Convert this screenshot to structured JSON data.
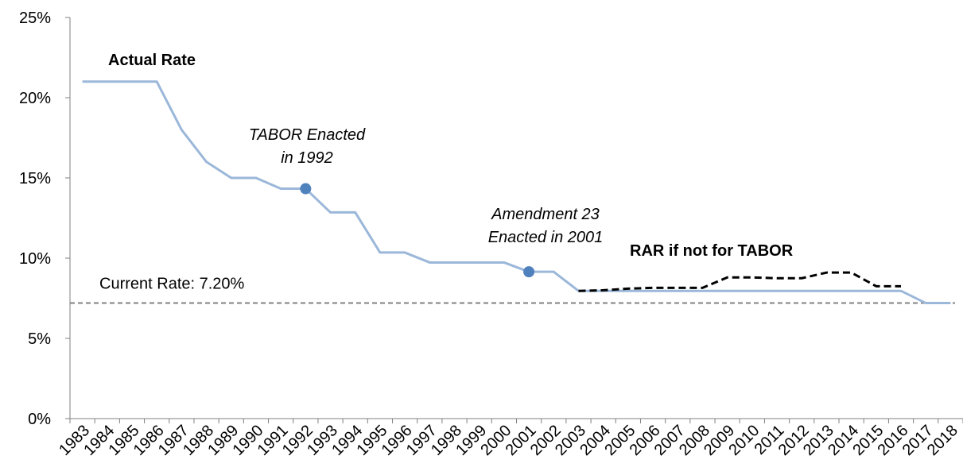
{
  "chart_data": {
    "type": "line",
    "categories": [
      "1983",
      "1984",
      "1985",
      "1986",
      "1987",
      "1988",
      "1989",
      "1990",
      "1991",
      "1992",
      "1993",
      "1994",
      "1995",
      "1996",
      "1997",
      "1998",
      "1999",
      "2000",
      "2001",
      "2002",
      "2003",
      "2004",
      "2005",
      "2006",
      "2007",
      "2008",
      "2009",
      "2010",
      "2011",
      "2012",
      "2013",
      "2014",
      "2015",
      "2016",
      "2017",
      "2018"
    ],
    "series": [
      {
        "name": "Actual Rate",
        "color": "#9bb7d9",
        "marker_color": "#4f81bd",
        "marker_indices": [
          9,
          18
        ],
        "values": [
          21,
          21,
          21,
          21,
          18,
          16,
          15,
          15,
          14.33,
          14.33,
          12.85,
          12.85,
          10.35,
          10.35,
          9.73,
          9.73,
          9.73,
          9.73,
          9.15,
          9.15,
          7.96,
          7.96,
          7.96,
          7.96,
          7.96,
          7.96,
          7.96,
          7.96,
          7.96,
          7.96,
          7.96,
          7.96,
          7.96,
          7.96,
          7.2,
          7.2
        ]
      },
      {
        "name": "RAR if not for TABOR",
        "color": "#000000",
        "dashed": true,
        "values": [
          null,
          null,
          null,
          null,
          null,
          null,
          null,
          null,
          null,
          null,
          null,
          null,
          null,
          null,
          null,
          null,
          null,
          null,
          null,
          null,
          7.96,
          8.0,
          8.1,
          8.15,
          8.15,
          8.15,
          8.8,
          8.8,
          8.75,
          8.75,
          9.1,
          9.1,
          8.25,
          8.25,
          null,
          null
        ]
      }
    ],
    "reference_lines": [
      {
        "value": 7.2,
        "label": "Current Rate: 7.20%",
        "color": "#808080"
      }
    ],
    "annotations": [
      {
        "lines": [
          "TABOR Enacted",
          "in 1992"
        ],
        "color": "#3d6ba3"
      },
      {
        "lines": [
          "Amendment 23",
          "Enacted in 2001"
        ],
        "color": "#6f9fd8"
      }
    ],
    "ylim": [
      0,
      25
    ],
    "yticks": [
      {
        "value": 0,
        "label": "0%"
      },
      {
        "value": 5,
        "label": "5%"
      },
      {
        "value": 10,
        "label": "10%"
      },
      {
        "value": 15,
        "label": "15%"
      },
      {
        "value": 20,
        "label": "20%"
      },
      {
        "value": 25,
        "label": "25%"
      }
    ]
  }
}
